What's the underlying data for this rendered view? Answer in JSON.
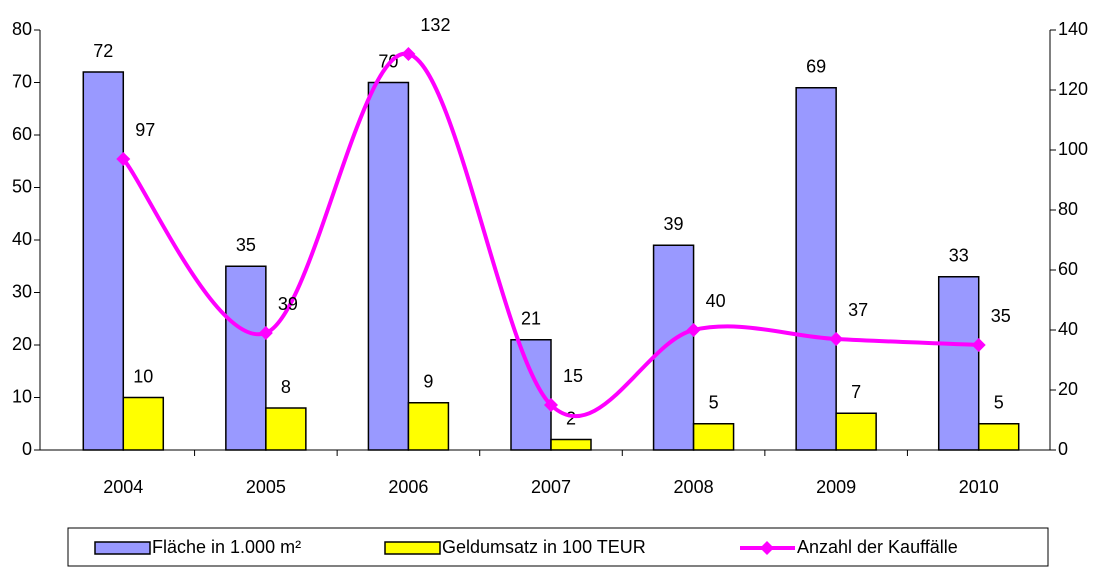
{
  "chart_data": {
    "type": "bar",
    "categories": [
      "2004",
      "2005",
      "2006",
      "2007",
      "2008",
      "2009",
      "2010"
    ],
    "series": [
      {
        "name": "Fläche in 1.000 m²",
        "color": "#9999ff",
        "type": "bar",
        "values": [
          72,
          35,
          70,
          21,
          39,
          69,
          33
        ]
      },
      {
        "name": "Geldumsatz in 100 TEUR",
        "color": "#ffff00",
        "type": "bar",
        "values": [
          10,
          8,
          9,
          2,
          5,
          7,
          5
        ]
      },
      {
        "name": "Anzahl der Kauffälle",
        "color": "#ff00ff",
        "type": "line",
        "axis": "y2",
        "values": [
          97,
          39,
          132,
          15,
          40,
          37,
          35
        ]
      }
    ],
    "ylim": [
      0,
      80
    ],
    "yticks": [
      0,
      10,
      20,
      30,
      40,
      50,
      60,
      70,
      80
    ],
    "y2lim": [
      0,
      140
    ],
    "y2ticks": [
      0,
      20,
      40,
      60,
      80,
      100,
      120,
      140
    ],
    "legend": "bottom"
  }
}
